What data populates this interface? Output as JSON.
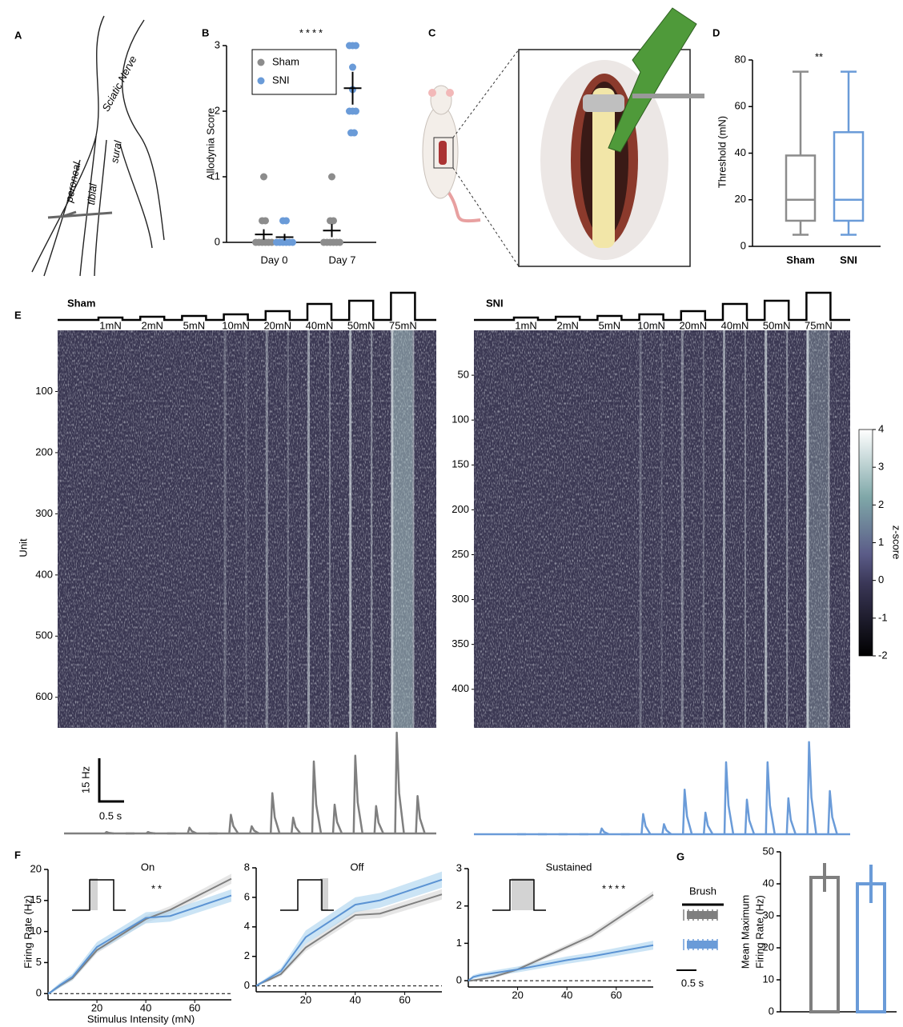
{
  "panel_labels": [
    "A",
    "B",
    "C",
    "D",
    "E",
    "F",
    "G"
  ],
  "nerve_diagram": {
    "labels": [
      "Sciatic Nerve",
      "peroneal",
      "tibial",
      "sural"
    ]
  },
  "chart_data": [
    {
      "type": "dot",
      "ylabel": "Allodynia Score",
      "annotation": "****",
      "categories": [
        "Day 0",
        "Day 7"
      ],
      "ylim": [
        0,
        3
      ],
      "yticks": [
        0,
        1,
        2,
        3
      ],
      "series": [
        {
          "name": "Sham",
          "color": "#8c8c8c",
          "values": [
            0.12,
            0.18
          ],
          "errors": [
            0.08,
            0.1
          ],
          "points": [
            [
              0,
              0,
              0,
              0,
              0,
              0,
              0.33,
              0.33,
              1
            ],
            [
              0,
              0,
              0,
              0,
              0,
              0,
              0.33,
              0.33,
              1
            ]
          ]
        },
        {
          "name": "SNI",
          "color": "#6a9bd8",
          "values": [
            0.08,
            2.35
          ],
          "errors": [
            0.05,
            0.25
          ],
          "points": [
            [
              0,
              0,
              0,
              0,
              0,
              0,
              0.33,
              0.33
            ],
            [
              1.67,
              1.67,
              2,
              2,
              2,
              2.33,
              2.67,
              3,
              3,
              3
            ]
          ]
        }
      ]
    },
    {
      "type": "box",
      "ylabel": "Threshold (mN)",
      "annotation": "**",
      "ylim": [
        0,
        80
      ],
      "yticks": [
        0,
        20,
        40,
        60,
        80
      ],
      "series": [
        {
          "name": "Sham",
          "color": "#8c8c8c",
          "min": 5,
          "q1": 11,
          "median": 20,
          "q3": 39,
          "max": 75
        },
        {
          "name": "SNI",
          "color": "#6a9bd8",
          "min": 5,
          "q1": 11,
          "median": 20,
          "q3": 49,
          "max": 75
        }
      ]
    },
    {
      "type": "heatmap",
      "title": "Sham",
      "color": "#8c8c8c",
      "ylabel": "Unit",
      "stimuli": [
        "1mN",
        "2mN",
        "5mN",
        "10mN",
        "20mN",
        "40mN",
        "50mN",
        "75mN"
      ],
      "ylim": [
        0,
        650
      ],
      "yticks": [
        100,
        200,
        300,
        400,
        500,
        600
      ]
    },
    {
      "type": "heatmap",
      "title": "SNI",
      "color": "#6a9bd8",
      "stimuli": [
        "1mN",
        "2mN",
        "5mN",
        "10mN",
        "20mN",
        "40mN",
        "50mN",
        "75mN"
      ],
      "ylim": [
        0,
        443
      ],
      "yticks": [
        50,
        100,
        150,
        200,
        250,
        300,
        350,
        400
      ]
    },
    {
      "type": "colorbar",
      "label": "z-score",
      "ylim": [
        -2,
        4
      ],
      "yticks": [
        -2,
        -1,
        0,
        1,
        2,
        3,
        4
      ]
    },
    {
      "type": "trace",
      "color": "#7f7f7f",
      "scale_bar": {
        "value": 15,
        "y_label": "15 Hz",
        "x_label": "0.5 s"
      },
      "on_peaks": [
        0.5,
        0.5,
        2,
        6.5,
        14,
        25,
        27,
        35
      ],
      "off_peaks": [
        0,
        0,
        0,
        2.5,
        5.5,
        10,
        9.5,
        13
      ]
    },
    {
      "type": "trace",
      "color": "#6a9bd8",
      "on_peaks": [
        0,
        0,
        2,
        7,
        15.5,
        25,
        25,
        32
      ],
      "off_peaks": [
        0,
        0,
        0,
        3.5,
        7.5,
        12,
        12.5,
        15
      ]
    },
    {
      "type": "line",
      "title": "On",
      "annotation": "**",
      "ylabel": "Firing Rate (Hz)",
      "xlabel": "Stimulus Intensity (mN)",
      "x": [
        0,
        1,
        2,
        5,
        10,
        20,
        40,
        50,
        75
      ],
      "xlim": [
        0,
        75
      ],
      "xticks": [
        20,
        40,
        60
      ],
      "ylim": [
        -1,
        20
      ],
      "yticks": [
        0,
        5,
        10,
        15,
        20
      ],
      "series": [
        {
          "name": "Sham",
          "color": "#7f7f7f",
          "values": [
            0,
            0.2,
            0.5,
            1.3,
            2.5,
            7,
            12,
            13.5,
            18.5
          ],
          "errors": [
            0.2,
            0.2,
            0.2,
            0.3,
            0.4,
            0.5,
            0.6,
            0.6,
            0.8
          ]
        },
        {
          "name": "SNI",
          "color": "#5b93d3",
          "values": [
            0,
            0.2,
            0.5,
            1.4,
            2.7,
            7.5,
            12.2,
            12.5,
            15.8
          ],
          "errors": [
            0.2,
            0.2,
            0.3,
            0.4,
            0.5,
            0.8,
            0.9,
            0.9,
            1
          ]
        }
      ]
    },
    {
      "type": "line",
      "title": "Off",
      "x": [
        0,
        1,
        2,
        5,
        10,
        20,
        40,
        50,
        75
      ],
      "xlim": [
        0,
        75
      ],
      "xticks": [
        20,
        40,
        60
      ],
      "ylim": [
        -0.4,
        8
      ],
      "yticks": [
        0,
        2,
        4,
        6,
        8
      ],
      "series": [
        {
          "name": "Sham",
          "color": "#7f7f7f",
          "values": [
            0,
            0.1,
            0.2,
            0.4,
            0.8,
            2.6,
            4.8,
            4.9,
            6.2
          ],
          "errors": [
            0.05,
            0.05,
            0.1,
            0.1,
            0.15,
            0.25,
            0.3,
            0.3,
            0.35
          ]
        },
        {
          "name": "SNI",
          "color": "#5b93d3",
          "values": [
            0,
            0.1,
            0.2,
            0.5,
            1,
            3.3,
            5.5,
            5.8,
            7.2
          ],
          "errors": [
            0.05,
            0.1,
            0.1,
            0.15,
            0.2,
            0.45,
            0.5,
            0.5,
            0.55
          ]
        }
      ]
    },
    {
      "type": "line",
      "title": "Sustained",
      "annotation": "****",
      "x": [
        0,
        1,
        2,
        5,
        10,
        20,
        40,
        50,
        75
      ],
      "xlim": [
        0,
        75
      ],
      "xticks": [
        20,
        40,
        60
      ],
      "ylim": [
        -0.17,
        3
      ],
      "yticks": [
        0,
        1,
        2,
        3
      ],
      "series": [
        {
          "name": "Sham",
          "color": "#7f7f7f",
          "values": [
            0,
            0,
            0.01,
            0.04,
            0.1,
            0.3,
            0.9,
            1.2,
            2.3
          ],
          "errors": [
            0.02,
            0.02,
            0.02,
            0.03,
            0.04,
            0.05,
            0.07,
            0.08,
            0.1
          ]
        },
        {
          "name": "SNI",
          "color": "#5b93d3",
          "values": [
            0,
            0.05,
            0.1,
            0.15,
            0.2,
            0.3,
            0.55,
            0.65,
            0.95
          ],
          "errors": [
            0.03,
            0.04,
            0.05,
            0.06,
            0.07,
            0.08,
            0.1,
            0.1,
            0.12
          ]
        }
      ]
    },
    {
      "type": "bar",
      "label": "Brush",
      "scale_label": "0.5 s",
      "ylabel": [
        "Mean Maximum",
        "Firing Rate (Hz)"
      ],
      "categories": [
        null,
        null
      ],
      "values": [
        42,
        40
      ],
      "errors": [
        4.5,
        6
      ],
      "colors": [
        "#7f7f7f",
        "#6a9bd8"
      ],
      "ylim": [
        0,
        50
      ],
      "yticks": [
        0,
        10,
        20,
        30,
        40,
        50
      ]
    }
  ]
}
